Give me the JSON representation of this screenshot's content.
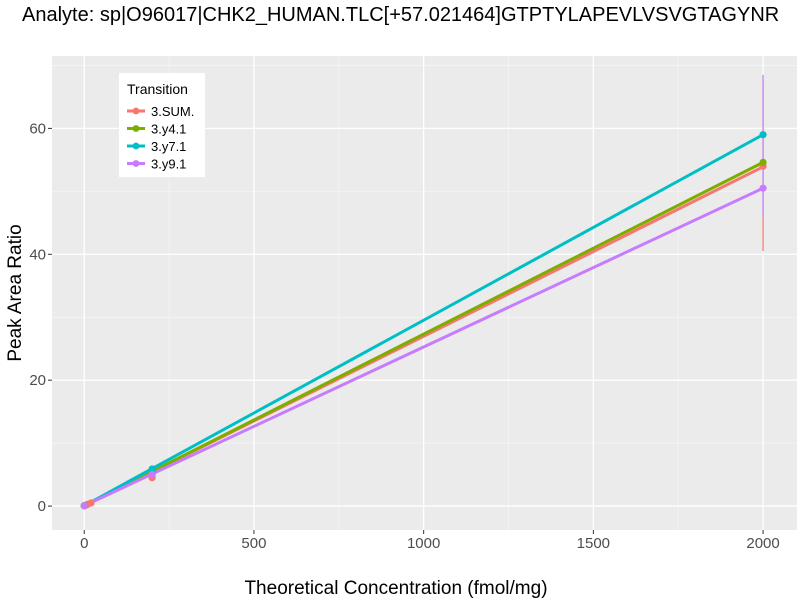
{
  "chart_data": {
    "type": "line",
    "title": "Analyte: sp|O96017|CHK2_HUMAN.TLC[+57.021464]GTPTYLAPEVLVSVGTAGYNR",
    "xlabel": "Theoretical Concentration (fmol/mg)",
    "ylabel": "Peak Area Ratio",
    "xlim": [
      -95,
      2100
    ],
    "ylim": [
      -3.8,
      71.5
    ],
    "x_ticks": [
      0,
      500,
      1000,
      1500,
      2000
    ],
    "x_tick_labels": [
      "0",
      "500",
      "1000",
      "1500",
      "2000"
    ],
    "y_ticks": [
      0,
      20,
      40,
      60
    ],
    "y_tick_labels": [
      "0",
      "20",
      "40",
      "60"
    ],
    "grid": true,
    "legend": {
      "title": "Transition",
      "placement": "top-left"
    },
    "series": [
      {
        "name": "3.SUM.",
        "color": "#F8766D",
        "points": [
          {
            "x": 0,
            "y": 0.05
          },
          {
            "x": 0.5,
            "y": 0.05
          },
          {
            "x": 2,
            "y": 0.08
          },
          {
            "x": 5,
            "y": 0.15
          },
          {
            "x": 10,
            "y": 0.28
          },
          {
            "x": 20,
            "y": 0.5
          },
          {
            "x": 200,
            "y": 4.5
          },
          {
            "x": 2000,
            "y": 54.0
          }
        ],
        "error_bars": [
          {
            "x": 2000,
            "low": 40.5,
            "high": 67.5
          }
        ],
        "fit": [
          [
            0,
            0.05
          ],
          [
            2000,
            53.9
          ]
        ]
      },
      {
        "name": "3.y4.1",
        "color": "#7CAE00",
        "points": [
          {
            "x": 0,
            "y": 0.05
          },
          {
            "x": 200,
            "y": 5.4
          },
          {
            "x": 2000,
            "y": 54.6
          }
        ],
        "fit": [
          [
            0,
            0.05
          ],
          [
            2000,
            54.6
          ]
        ]
      },
      {
        "name": "3.y7.1",
        "color": "#00BFC4",
        "points": [
          {
            "x": 0,
            "y": 0.05
          },
          {
            "x": 200,
            "y": 5.9
          },
          {
            "x": 2000,
            "y": 59.0
          }
        ],
        "fit": [
          [
            0,
            0.05
          ],
          [
            2000,
            59.0
          ]
        ]
      },
      {
        "name": "3.y9.1",
        "color": "#C77CFF",
        "points": [
          {
            "x": 0,
            "y": 0.05
          },
          {
            "x": 200,
            "y": 5.0
          },
          {
            "x": 2000,
            "y": 50.5
          }
        ],
        "error_bars": [
          {
            "x": 2000,
            "low": 46.0,
            "high": 68.5
          }
        ],
        "fit": [
          [
            0,
            0.05
          ],
          [
            2000,
            50.5
          ]
        ]
      }
    ]
  }
}
